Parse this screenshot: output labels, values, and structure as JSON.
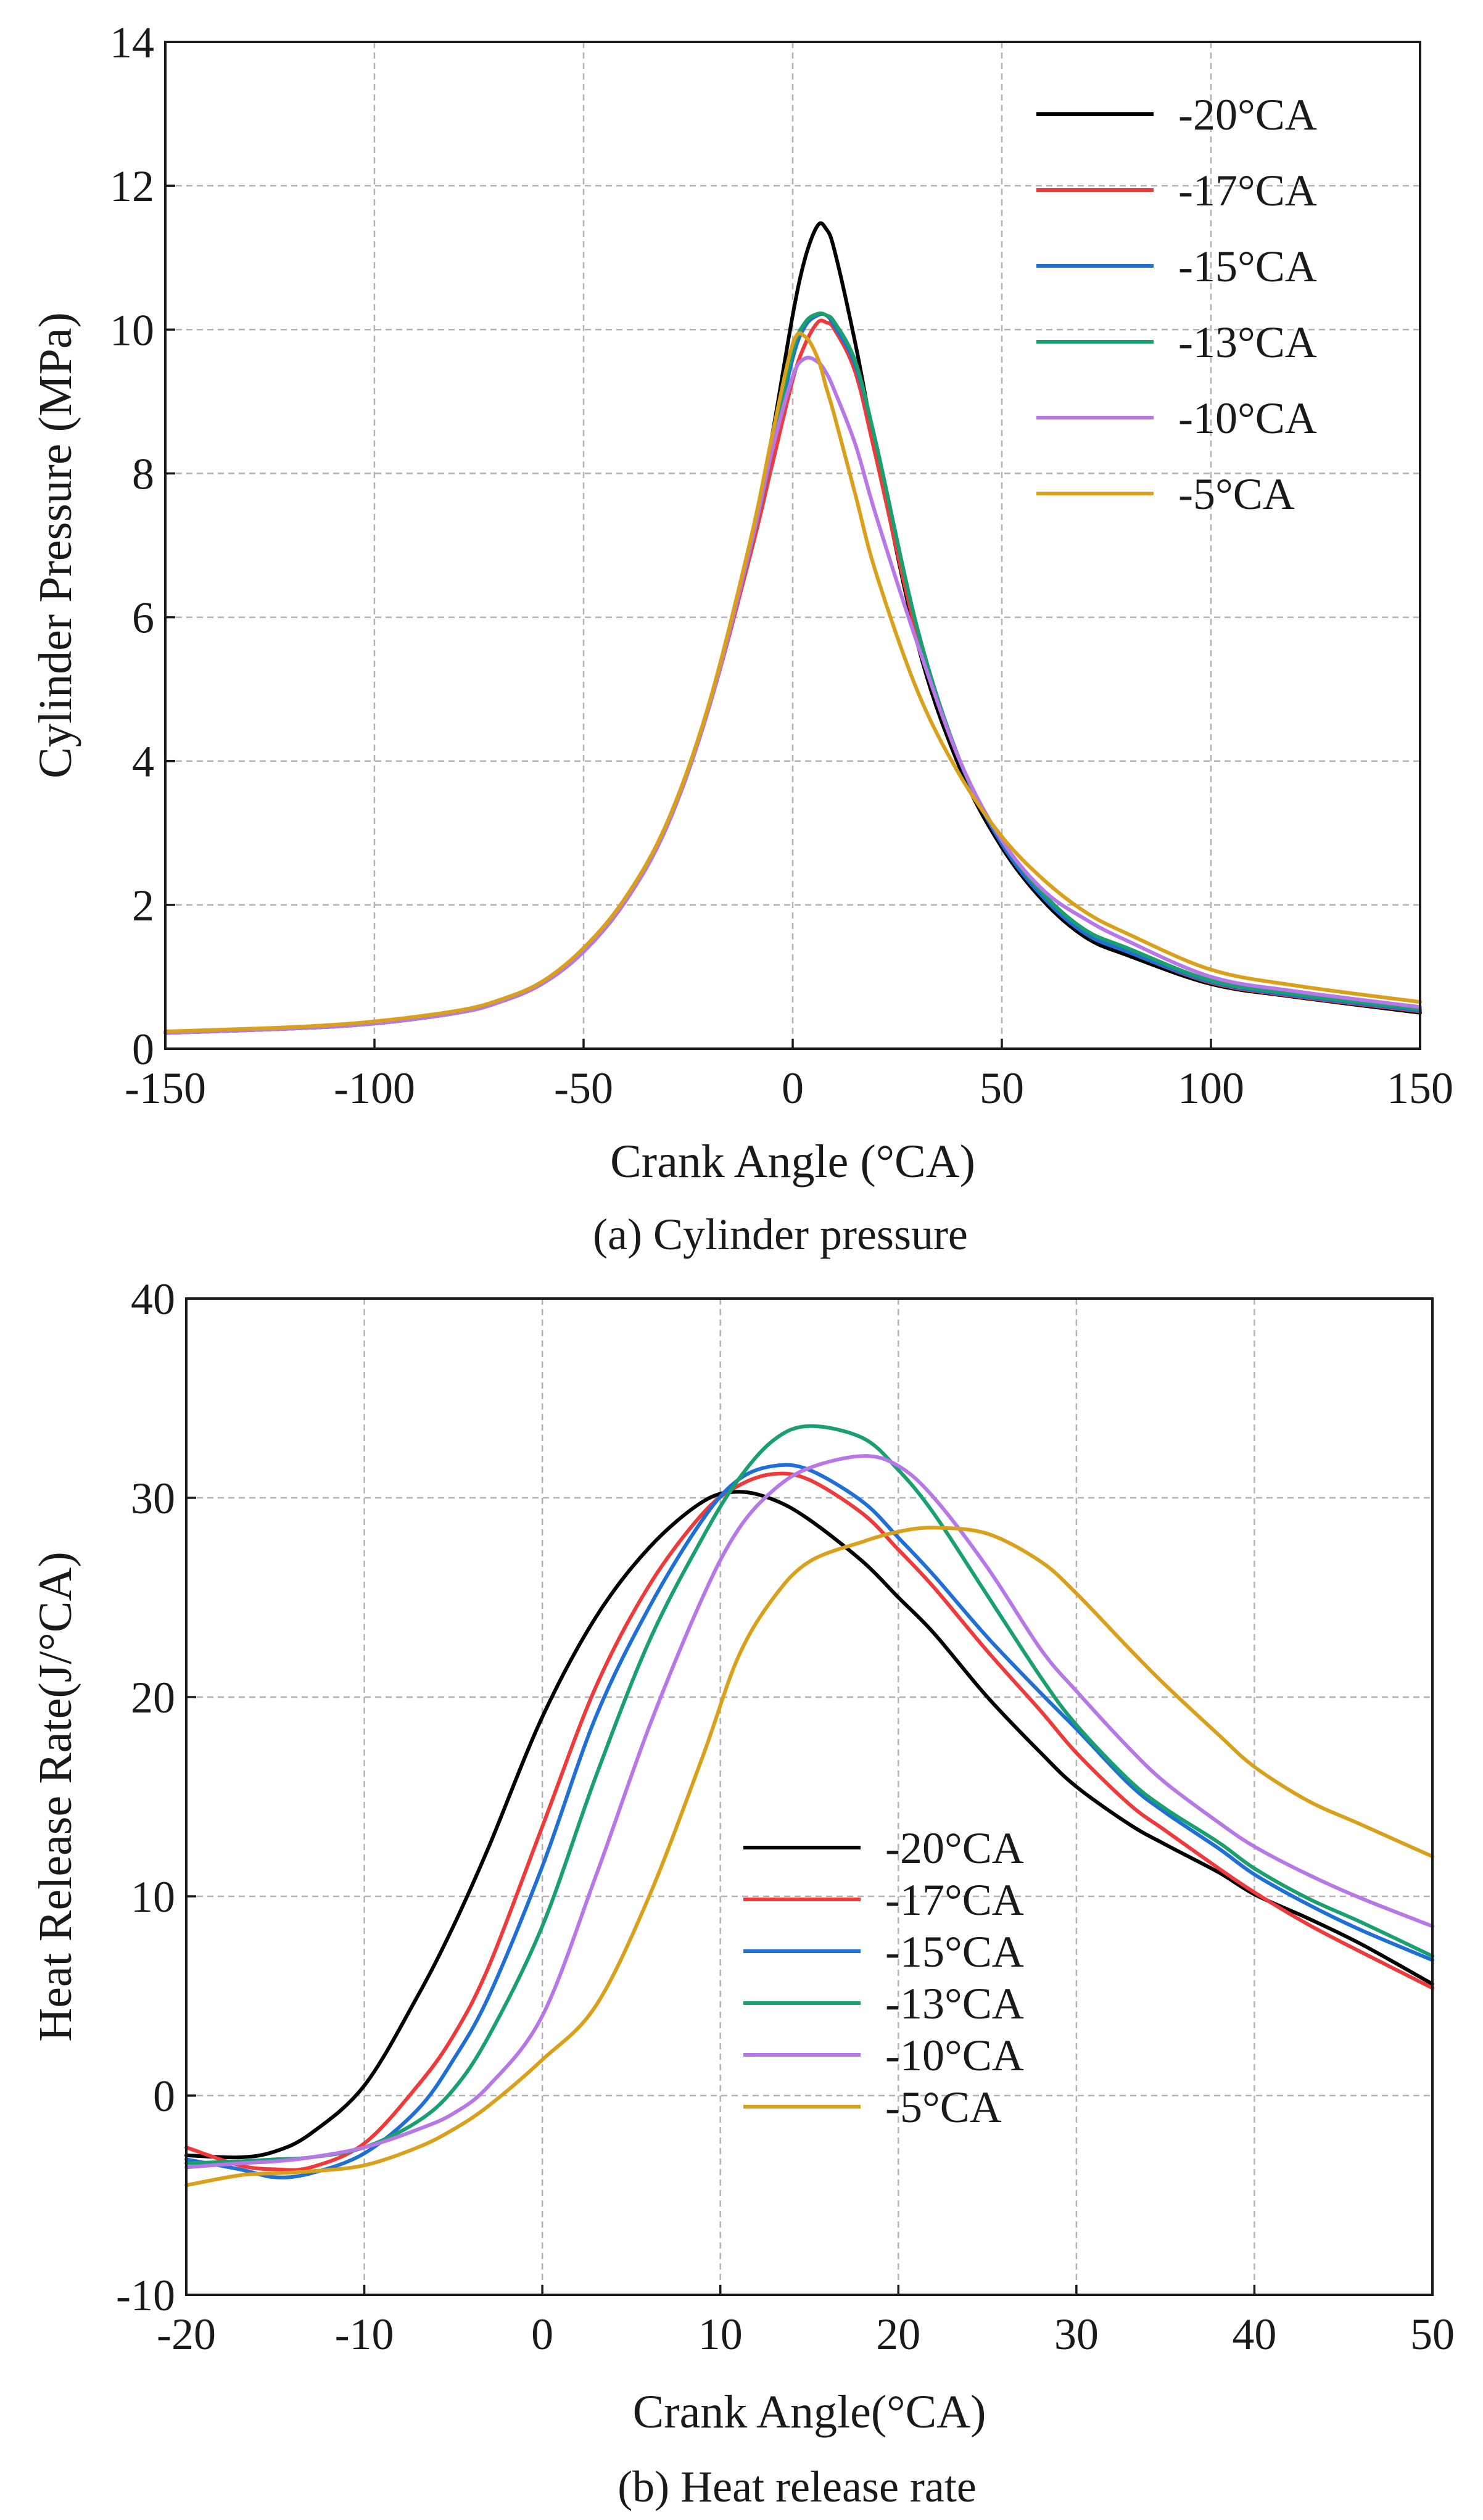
{
  "chart_data": [
    {
      "type": "line",
      "caption": "(a) Cylinder pressure",
      "xlabel": "Crank Angle (°CA)",
      "ylabel": "Cylinder Pressure (MPa)",
      "xlim": [
        -150,
        150
      ],
      "ylim": [
        0,
        14
      ],
      "xticks": [
        -150,
        -100,
        -50,
        0,
        50,
        100,
        150
      ],
      "yticks": [
        0,
        2,
        4,
        6,
        8,
        10,
        12,
        14
      ],
      "grid": true,
      "legend_position": "top-right",
      "series": [
        {
          "name": "-20°CA",
          "color": "#000000",
          "x": [
            -150,
            -120,
            -100,
            -80,
            -70,
            -60,
            -50,
            -40,
            -30,
            -20,
            -10,
            -5,
            0,
            3,
            6,
            8,
            10,
            15,
            20,
            30,
            40,
            50,
            60,
            70,
            80,
            100,
            120,
            150
          ],
          "y": [
            0.22,
            0.28,
            0.35,
            0.5,
            0.65,
            0.9,
            1.35,
            2.05,
            3.1,
            4.75,
            7.0,
            8.5,
            10.2,
            11.0,
            11.45,
            11.4,
            11.1,
            9.8,
            8.3,
            5.6,
            3.9,
            2.8,
            2.05,
            1.55,
            1.3,
            0.9,
            0.72,
            0.5
          ]
        },
        {
          "name": "-17°CA",
          "color": "#ee3a3a",
          "x": [
            -150,
            -120,
            -100,
            -80,
            -70,
            -60,
            -50,
            -40,
            -30,
            -20,
            -10,
            -5,
            0,
            3,
            6,
            8,
            10,
            15,
            20,
            30,
            40,
            50,
            60,
            70,
            80,
            100,
            120,
            150
          ],
          "y": [
            0.22,
            0.28,
            0.35,
            0.5,
            0.65,
            0.9,
            1.35,
            2.05,
            3.1,
            4.75,
            6.9,
            8.1,
            9.3,
            9.8,
            10.1,
            10.1,
            10.0,
            9.4,
            8.2,
            5.7,
            4.0,
            2.85,
            2.1,
            1.6,
            1.35,
            0.92,
            0.73,
            0.52
          ]
        },
        {
          "name": "-15°CA",
          "color": "#1f6fd6",
          "x": [
            -150,
            -120,
            -100,
            -80,
            -70,
            -60,
            -50,
            -40,
            -30,
            -20,
            -10,
            -5,
            0,
            3,
            6,
            8,
            10,
            15,
            20,
            30,
            40,
            50,
            60,
            70,
            80,
            100,
            120,
            150
          ],
          "y": [
            0.22,
            0.28,
            0.35,
            0.5,
            0.65,
            0.9,
            1.35,
            2.05,
            3.1,
            4.75,
            7.0,
            8.3,
            9.6,
            10.05,
            10.2,
            10.2,
            10.05,
            9.5,
            8.4,
            5.8,
            4.0,
            2.85,
            2.1,
            1.6,
            1.35,
            0.93,
            0.74,
            0.53
          ]
        },
        {
          "name": "-13°CA",
          "color": "#1aa06f",
          "x": [
            -150,
            -120,
            -100,
            -80,
            -70,
            -60,
            -50,
            -40,
            -30,
            -20,
            -10,
            -5,
            0,
            3,
            6,
            8,
            10,
            15,
            20,
            30,
            40,
            50,
            60,
            70,
            80,
            100,
            120,
            150
          ],
          "y": [
            0.22,
            0.28,
            0.35,
            0.5,
            0.65,
            0.9,
            1.35,
            2.05,
            3.1,
            4.75,
            7.0,
            8.35,
            9.7,
            10.1,
            10.22,
            10.2,
            10.1,
            9.55,
            8.4,
            5.8,
            4.0,
            2.9,
            2.15,
            1.65,
            1.4,
            0.95,
            0.76,
            0.55
          ]
        },
        {
          "name": "-10°CA",
          "color": "#b877e6",
          "x": [
            -150,
            -120,
            -100,
            -80,
            -70,
            -60,
            -50,
            -40,
            -30,
            -20,
            -10,
            -5,
            0,
            3,
            6,
            8,
            10,
            15,
            20,
            30,
            40,
            50,
            60,
            70,
            80,
            100,
            120,
            150
          ],
          "y": [
            0.22,
            0.28,
            0.35,
            0.5,
            0.65,
            0.9,
            1.35,
            2.05,
            3.1,
            4.75,
            7.0,
            8.3,
            9.35,
            9.6,
            9.55,
            9.4,
            9.15,
            8.4,
            7.4,
            5.6,
            4.0,
            2.9,
            2.2,
            1.8,
            1.5,
            1.0,
            0.8,
            0.58
          ]
        },
        {
          "name": "-5°CA",
          "color": "#d9a11b",
          "x": [
            -150,
            -120,
            -100,
            -80,
            -70,
            -60,
            -50,
            -40,
            -30,
            -20,
            -10,
            -5,
            0,
            3,
            6,
            8,
            10,
            15,
            20,
            30,
            40,
            50,
            60,
            70,
            80,
            100,
            120,
            150
          ],
          "y": [
            0.24,
            0.3,
            0.38,
            0.53,
            0.68,
            0.93,
            1.4,
            2.1,
            3.15,
            4.8,
            7.1,
            8.5,
            9.8,
            9.9,
            9.6,
            9.2,
            8.8,
            7.7,
            6.6,
            4.95,
            3.8,
            2.95,
            2.35,
            1.9,
            1.6,
            1.1,
            0.88,
            0.65
          ]
        }
      ]
    },
    {
      "type": "line",
      "caption": "(b) Heat release rate",
      "xlabel": "Crank Angle(°CA)",
      "ylabel": "Heat Release Rate(J/°CA)",
      "xlim": [
        -20,
        50
      ],
      "ylim": [
        -10,
        40
      ],
      "xticks": [
        -20,
        -10,
        0,
        10,
        20,
        30,
        40,
        50
      ],
      "yticks": [
        -10,
        0,
        10,
        20,
        30,
        40
      ],
      "grid": true,
      "legend_position": "bottom-right",
      "series": [
        {
          "name": "-20°CA",
          "color": "#000000",
          "x": [
            -20,
            -17,
            -15,
            -13,
            -10,
            -7,
            -5,
            -3,
            0,
            3,
            6,
            9,
            11,
            13,
            15,
            18,
            20,
            22,
            25,
            28,
            30,
            33,
            35,
            38,
            40,
            43,
            46,
            50
          ],
          "y": [
            -3.0,
            -3.1,
            -2.8,
            -1.9,
            0.5,
            5.0,
            8.5,
            12.5,
            19.0,
            24.0,
            27.5,
            29.8,
            30.3,
            29.9,
            28.9,
            26.8,
            25.0,
            23.2,
            20.0,
            17.2,
            15.5,
            13.6,
            12.6,
            11.2,
            10.1,
            8.9,
            7.6,
            5.6
          ]
        },
        {
          "name": "-17°CA",
          "color": "#ee3a3a",
          "x": [
            -20,
            -17,
            -15,
            -13,
            -10,
            -7,
            -5,
            -3,
            0,
            3,
            6,
            9,
            11,
            13,
            15,
            18,
            20,
            22,
            25,
            28,
            30,
            33,
            35,
            38,
            40,
            43,
            46,
            50
          ],
          "y": [
            -2.6,
            -3.5,
            -3.7,
            -3.6,
            -2.4,
            0.5,
            3.0,
            6.5,
            13.5,
            20.5,
            25.6,
            29.2,
            30.6,
            31.2,
            30.9,
            29.2,
            27.4,
            25.5,
            22.3,
            19.3,
            17.2,
            14.6,
            13.3,
            11.4,
            10.2,
            8.6,
            7.2,
            5.4
          ]
        },
        {
          "name": "-15°CA",
          "color": "#1f6fd6",
          "x": [
            -20,
            -17,
            -15,
            -13,
            -10,
            -7,
            -5,
            -3,
            0,
            3,
            6,
            9,
            11,
            13,
            15,
            18,
            20,
            22,
            25,
            28,
            30,
            33,
            35,
            38,
            40,
            43,
            46,
            50
          ],
          "y": [
            -3.2,
            -3.7,
            -4.1,
            -3.9,
            -2.9,
            -0.7,
            1.8,
            5.0,
            11.5,
            19.0,
            24.5,
            28.9,
            30.9,
            31.6,
            31.4,
            29.8,
            28.0,
            26.1,
            23.0,
            20.2,
            18.4,
            15.6,
            14.2,
            12.4,
            11.1,
            9.6,
            8.3,
            6.8
          ]
        },
        {
          "name": "-13°CA",
          "color": "#1aa06f",
          "x": [
            -20,
            -17,
            -15,
            -13,
            -10,
            -7,
            -5,
            -3,
            0,
            3,
            6,
            9,
            11,
            13,
            15,
            18,
            20,
            22,
            25,
            28,
            30,
            33,
            35,
            38,
            40,
            43,
            46,
            50
          ],
          "y": [
            -3.4,
            -3.3,
            -3.2,
            -3.1,
            -2.6,
            -1.3,
            0.3,
            3.0,
            8.5,
            16.0,
            22.8,
            28.0,
            30.9,
            32.9,
            33.6,
            33.0,
            31.4,
            29.2,
            25.1,
            21.0,
            18.6,
            15.8,
            14.4,
            12.7,
            11.4,
            9.9,
            8.7,
            7.0
          ]
        },
        {
          "name": "-10°CA",
          "color": "#b877e6",
          "x": [
            -20,
            -17,
            -15,
            -13,
            -10,
            -7,
            -5,
            -3,
            0,
            3,
            6,
            9,
            11,
            13,
            15,
            18,
            20,
            22,
            25,
            28,
            30,
            33,
            35,
            38,
            40,
            43,
            46,
            50
          ],
          "y": [
            -3.6,
            -3.4,
            -3.3,
            -3.1,
            -2.6,
            -1.7,
            -0.9,
            0.5,
            4.0,
            11.0,
            18.5,
            25.0,
            28.4,
            30.4,
            31.5,
            32.1,
            31.6,
            30.0,
            26.5,
            22.4,
            20.3,
            17.4,
            15.7,
            13.7,
            12.5,
            11.1,
            9.9,
            8.5
          ]
        },
        {
          "name": "-5°CA",
          "color": "#d9a11b",
          "x": [
            -20,
            -17,
            -15,
            -13,
            -10,
            -7,
            -5,
            -3,
            0,
            3,
            6,
            9,
            11,
            13,
            15,
            18,
            20,
            22,
            25,
            28,
            30,
            33,
            35,
            38,
            40,
            43,
            46,
            50
          ],
          "y": [
            -4.5,
            -4.0,
            -3.9,
            -3.8,
            -3.5,
            -2.6,
            -1.7,
            -0.5,
            1.8,
            4.5,
            10.0,
            17.0,
            22.0,
            25.0,
            26.8,
            27.8,
            28.3,
            28.5,
            28.2,
            26.8,
            25.2,
            22.4,
            20.6,
            18.1,
            16.5,
            14.8,
            13.6,
            12.0
          ]
        }
      ]
    }
  ]
}
